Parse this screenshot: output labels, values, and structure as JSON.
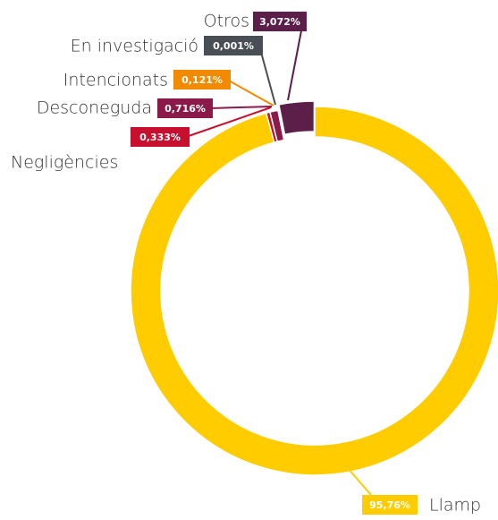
{
  "chart_data": {
    "type": "donut",
    "categories": [
      "Llamp",
      "Negligències",
      "Desconeguda",
      "Intencionats",
      "En investigació",
      "Otros"
    ],
    "values": [
      95.76,
      0.333,
      0.716,
      0.121,
      0.001,
      3.072
    ],
    "value_labels": [
      "95,76%",
      "0,333%",
      "0,716%",
      "0,121%",
      "0,001%",
      "3,072%"
    ],
    "colors": [
      "#ffcc00",
      "#c8102e",
      "#8b1a4a",
      "#f28a00",
      "#4a4f55",
      "#5c1f4a"
    ]
  }
}
